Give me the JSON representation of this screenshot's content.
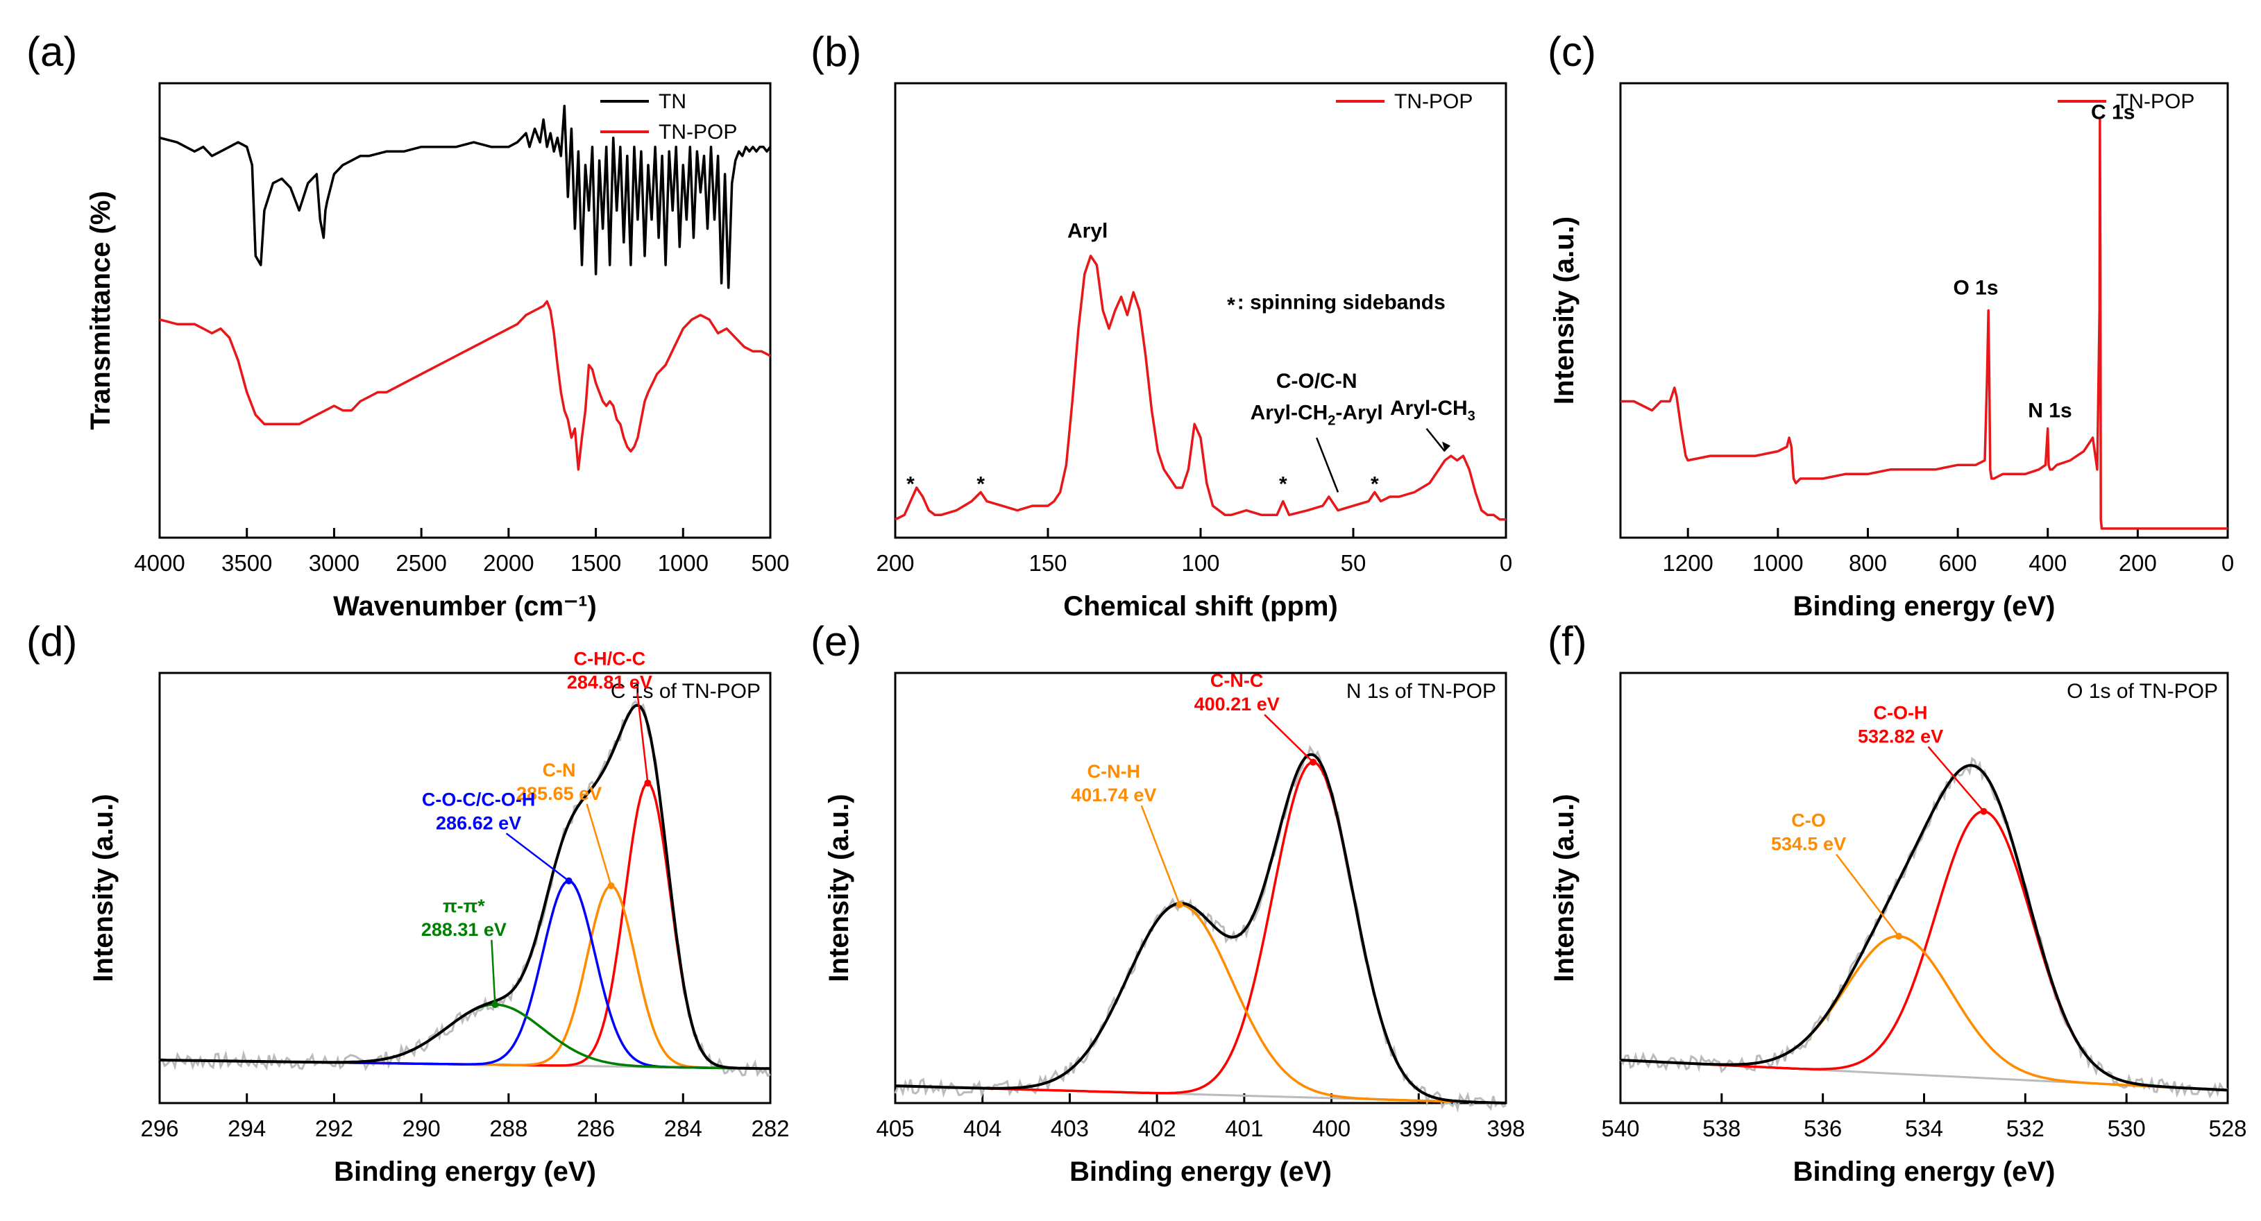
{
  "chart_data": [
    {
      "id": "a",
      "panel_label": "(a)",
      "type": "line",
      "title": "",
      "xlabel": "Wavenumber (cm⁻¹)",
      "ylabel": "Transmittance (%)",
      "xlim": [
        4000,
        500
      ],
      "ylim": [
        0,
        1
      ],
      "xticks": [
        "4000",
        "3500",
        "3000",
        "2500",
        "2000",
        "1500",
        "1000",
        "500"
      ],
      "xtick_values": [
        4000,
        3500,
        3000,
        2500,
        2000,
        1500,
        1000,
        500
      ],
      "legend": "top-right",
      "grid": false,
      "series": [
        {
          "name": "TN",
          "color": "#000000",
          "x": [
            4000,
            3900,
            3800,
            3750,
            3700,
            3650,
            3600,
            3550,
            3500,
            3470,
            3450,
            3420,
            3400,
            3350,
            3300,
            3250,
            3200,
            3150,
            3100,
            3080,
            3060,
            3050,
            3040,
            3000,
            2950,
            2900,
            2850,
            2800,
            2700,
            2600,
            2500,
            2400,
            2300,
            2200,
            2100,
            2000,
            1950,
            1900,
            1880,
            1850,
            1820,
            1800,
            1780,
            1760,
            1740,
            1720,
            1700,
            1680,
            1660,
            1640,
            1620,
            1600,
            1580,
            1560,
            1540,
            1520,
            1500,
            1480,
            1460,
            1440,
            1420,
            1400,
            1380,
            1360,
            1340,
            1320,
            1300,
            1280,
            1260,
            1240,
            1220,
            1200,
            1180,
            1160,
            1140,
            1120,
            1100,
            1080,
            1060,
            1040,
            1020,
            1000,
            980,
            960,
            940,
            920,
            900,
            880,
            860,
            840,
            820,
            800,
            780,
            760,
            740,
            720,
            700,
            680,
            660,
            640,
            620,
            600,
            580,
            560,
            540,
            520,
            500
          ],
          "y": [
            0.88,
            0.87,
            0.85,
            0.86,
            0.84,
            0.85,
            0.86,
            0.87,
            0.86,
            0.82,
            0.62,
            0.6,
            0.72,
            0.78,
            0.79,
            0.77,
            0.72,
            0.78,
            0.8,
            0.7,
            0.66,
            0.72,
            0.74,
            0.8,
            0.82,
            0.83,
            0.84,
            0.84,
            0.85,
            0.85,
            0.86,
            0.86,
            0.86,
            0.87,
            0.86,
            0.86,
            0.87,
            0.89,
            0.86,
            0.9,
            0.87,
            0.92,
            0.86,
            0.89,
            0.85,
            0.88,
            0.84,
            0.95,
            0.75,
            0.9,
            0.68,
            0.85,
            0.6,
            0.82,
            0.72,
            0.86,
            0.58,
            0.83,
            0.68,
            0.86,
            0.6,
            0.88,
            0.72,
            0.86,
            0.65,
            0.84,
            0.6,
            0.86,
            0.7,
            0.85,
            0.62,
            0.82,
            0.7,
            0.86,
            0.66,
            0.84,
            0.6,
            0.85,
            0.72,
            0.86,
            0.64,
            0.82,
            0.7,
            0.86,
            0.66,
            0.85,
            0.76,
            0.84,
            0.68,
            0.86,
            0.7,
            0.84,
            0.56,
            0.8,
            0.55,
            0.78,
            0.83,
            0.85,
            0.84,
            0.86,
            0.85,
            0.86,
            0.85,
            0.86,
            0.86,
            0.85,
            0.86
          ]
        },
        {
          "name": "TN-POP",
          "color": "#e8171a",
          "x": [
            4000,
            3900,
            3800,
            3750,
            3700,
            3650,
            3600,
            3550,
            3500,
            3450,
            3400,
            3350,
            3300,
            3250,
            3200,
            3150,
            3100,
            3050,
            3000,
            2950,
            2900,
            2850,
            2800,
            2750,
            2700,
            2600,
            2500,
            2400,
            2300,
            2200,
            2100,
            2000,
            1950,
            1900,
            1850,
            1800,
            1780,
            1760,
            1740,
            1720,
            1700,
            1680,
            1660,
            1640,
            1620,
            1600,
            1580,
            1560,
            1540,
            1520,
            1500,
            1480,
            1460,
            1440,
            1420,
            1400,
            1380,
            1360,
            1340,
            1320,
            1300,
            1280,
            1260,
            1240,
            1220,
            1200,
            1150,
            1100,
            1050,
            1000,
            950,
            900,
            850,
            800,
            750,
            700,
            650,
            600,
            550,
            500
          ],
          "y": [
            0.48,
            0.47,
            0.47,
            0.46,
            0.45,
            0.46,
            0.44,
            0.39,
            0.32,
            0.27,
            0.25,
            0.25,
            0.25,
            0.25,
            0.25,
            0.26,
            0.27,
            0.28,
            0.29,
            0.28,
            0.28,
            0.3,
            0.31,
            0.32,
            0.32,
            0.34,
            0.36,
            0.38,
            0.4,
            0.42,
            0.44,
            0.46,
            0.47,
            0.49,
            0.5,
            0.51,
            0.52,
            0.5,
            0.45,
            0.38,
            0.32,
            0.28,
            0.26,
            0.22,
            0.24,
            0.15,
            0.22,
            0.28,
            0.38,
            0.37,
            0.34,
            0.32,
            0.3,
            0.29,
            0.3,
            0.29,
            0.26,
            0.25,
            0.22,
            0.2,
            0.19,
            0.2,
            0.22,
            0.26,
            0.3,
            0.32,
            0.36,
            0.38,
            0.42,
            0.46,
            0.48,
            0.49,
            0.48,
            0.45,
            0.46,
            0.44,
            0.42,
            0.41,
            0.41,
            0.4
          ]
        }
      ]
    },
    {
      "id": "b",
      "panel_label": "(b)",
      "type": "line",
      "xlabel": "Chemical shift (ppm)",
      "ylabel": "",
      "xlim": [
        200,
        0
      ],
      "ylim": [
        0,
        1
      ],
      "xticks": [
        "200",
        "150",
        "100",
        "50",
        "0"
      ],
      "xtick_values": [
        200,
        150,
        100,
        50,
        0
      ],
      "legend": "top-right",
      "grid": false,
      "series": [
        {
          "name": "TN-POP",
          "color": "#e8171a",
          "x": [
            200,
            197,
            195,
            193,
            191,
            189,
            187,
            185,
            180,
            175,
            172,
            170,
            165,
            160,
            155,
            150,
            148,
            146,
            144,
            142,
            140,
            138,
            136,
            134,
            132,
            130,
            128,
            126,
            124,
            122,
            120,
            118,
            116,
            114,
            112,
            110,
            108,
            106,
            104,
            102,
            100,
            98,
            96,
            94,
            92,
            90,
            85,
            80,
            75,
            73,
            71,
            65,
            60,
            58,
            55,
            50,
            45,
            43,
            41,
            38,
            35,
            30,
            25,
            22,
            20,
            18,
            16,
            14,
            12,
            10,
            8,
            6,
            4,
            2,
            0
          ],
          "y": [
            0.04,
            0.05,
            0.08,
            0.11,
            0.09,
            0.06,
            0.05,
            0.05,
            0.06,
            0.08,
            0.1,
            0.08,
            0.07,
            0.06,
            0.07,
            0.07,
            0.08,
            0.1,
            0.16,
            0.3,
            0.46,
            0.58,
            0.62,
            0.6,
            0.5,
            0.46,
            0.5,
            0.53,
            0.49,
            0.54,
            0.5,
            0.4,
            0.28,
            0.19,
            0.15,
            0.13,
            0.11,
            0.11,
            0.15,
            0.25,
            0.22,
            0.12,
            0.07,
            0.06,
            0.05,
            0.05,
            0.06,
            0.05,
            0.05,
            0.08,
            0.05,
            0.06,
            0.07,
            0.09,
            0.06,
            0.07,
            0.08,
            0.1,
            0.08,
            0.09,
            0.09,
            0.1,
            0.12,
            0.15,
            0.17,
            0.18,
            0.17,
            0.18,
            0.15,
            0.1,
            0.06,
            0.05,
            0.05,
            0.04,
            0.04
          ]
        }
      ],
      "annotations": {
        "aryl": "Aryl",
        "sidebands": ": spinning sidebands",
        "asterisk": "*",
        "co_cn": "C-O/C-N",
        "aryl_ch2_a": "Aryl-CH",
        "aryl_ch2_sub": "2",
        "aryl_ch2_b": "-Aryl",
        "aryl_ch3_a": "Aryl-CH",
        "aryl_ch3_sub": "3"
      }
    },
    {
      "id": "c",
      "panel_label": "(c)",
      "type": "line",
      "xlabel": "Binding energy (eV)",
      "ylabel": "Intensity (a.u.)",
      "xlim": [
        1350,
        0
      ],
      "ylim": [
        0,
        1
      ],
      "xticks": [
        "1200",
        "1000",
        "800",
        "600",
        "400",
        "200",
        "0"
      ],
      "xtick_values": [
        1200,
        1000,
        800,
        600,
        400,
        200,
        0
      ],
      "legend": "top-right",
      "grid": false,
      "series": [
        {
          "name": "TN-POP",
          "color": "#e8171a",
          "x": [
            1350,
            1320,
            1300,
            1280,
            1260,
            1240,
            1230,
            1225,
            1215,
            1205,
            1200,
            1150,
            1100,
            1050,
            1000,
            980,
            975,
            970,
            965,
            960,
            950,
            900,
            850,
            800,
            750,
            700,
            650,
            600,
            560,
            540,
            535,
            532,
            530,
            528,
            525,
            520,
            500,
            450,
            420,
            405,
            400,
            398,
            395,
            390,
            380,
            350,
            320,
            300,
            290,
            285,
            284,
            283,
            282,
            280,
            270,
            250,
            200,
            150,
            100,
            50,
            0
          ],
          "y": [
            0.3,
            0.3,
            0.29,
            0.28,
            0.3,
            0.3,
            0.33,
            0.31,
            0.24,
            0.18,
            0.17,
            0.18,
            0.18,
            0.18,
            0.19,
            0.2,
            0.22,
            0.2,
            0.13,
            0.12,
            0.13,
            0.13,
            0.14,
            0.14,
            0.15,
            0.15,
            0.15,
            0.16,
            0.16,
            0.17,
            0.35,
            0.5,
            0.35,
            0.15,
            0.13,
            0.13,
            0.14,
            0.14,
            0.15,
            0.16,
            0.24,
            0.16,
            0.15,
            0.15,
            0.16,
            0.17,
            0.19,
            0.22,
            0.15,
            0.5,
            0.92,
            0.6,
            0.04,
            0.02,
            0.02,
            0.02,
            0.02,
            0.02,
            0.02,
            0.02,
            0.02
          ]
        }
      ],
      "annotations": {
        "c1s": "C 1s",
        "o1s": "O 1s",
        "n1s": "N 1s"
      }
    },
    {
      "id": "d",
      "panel_label": "(d)",
      "type": "line",
      "title": "C 1s of TN-POP",
      "xlabel": "Binding energy (eV)",
      "ylabel": "Intensity (a.u.)",
      "xlim": [
        296,
        282
      ],
      "ylim": [
        0,
        1
      ],
      "xticks": [
        "296",
        "294",
        "292",
        "290",
        "288",
        "286",
        "284",
        "282"
      ],
      "xtick_values": [
        296,
        294,
        292,
        290,
        288,
        286,
        284,
        282
      ],
      "grid": false,
      "peaks": [
        {
          "name": "C-H/C-C",
          "energy": "284.81 eV",
          "center": 284.81,
          "height": 0.66,
          "width": 0.52,
          "color": "#ff0000"
        },
        {
          "name": "C-N",
          "energy": "285.65 eV",
          "center": 285.65,
          "height": 0.42,
          "width": 0.55,
          "color": "#ff8c00"
        },
        {
          "name": "C-O-C/C-O-H",
          "energy": "286.62 eV",
          "center": 286.62,
          "height": 0.43,
          "width": 0.6,
          "color": "#0000ff"
        },
        {
          "name": "π-π*",
          "energy": "288.31 eV",
          "center": 288.31,
          "height": 0.14,
          "width": 1.1,
          "color": "#008000"
        }
      ],
      "background": {
        "start": 0.1,
        "end": 0.08
      },
      "envelope_color": "#000000",
      "raw_color": "#bbbbbb"
    },
    {
      "id": "e",
      "panel_label": "(e)",
      "type": "line",
      "title": "N 1s of TN-POP",
      "xlabel": "Binding energy (eV)",
      "ylabel": "Intensity (a.u.)",
      "xlim": [
        405,
        398
      ],
      "ylim": [
        0,
        1
      ],
      "xticks": [
        "405",
        "404",
        "403",
        "402",
        "401",
        "400",
        "399",
        "398"
      ],
      "xtick_values": [
        405,
        404,
        403,
        402,
        401,
        400,
        399,
        398
      ],
      "grid": false,
      "peaks": [
        {
          "name": "C-N-C",
          "energy": "400.21 eV",
          "center": 400.21,
          "height": 0.78,
          "width": 0.46,
          "color": "#ff0000"
        },
        {
          "name": "C-N-H",
          "energy": "401.74 eV",
          "center": 401.74,
          "height": 0.44,
          "width": 0.6,
          "color": "#ff8c00"
        }
      ],
      "background": {
        "start": 0.04,
        "end": 0.0
      },
      "envelope_color": "#000000",
      "raw_color": "#bbbbbb"
    },
    {
      "id": "f",
      "panel_label": "(f)",
      "type": "line",
      "title": "O 1s of TN-POP",
      "xlabel": "Binding energy (eV)",
      "ylabel": "Intensity (a.u.)",
      "xlim": [
        540,
        528
      ],
      "ylim": [
        0,
        1
      ],
      "xticks": [
        "540",
        "538",
        "536",
        "534",
        "532",
        "530",
        "528"
      ],
      "xtick_values": [
        540,
        538,
        536,
        534,
        532,
        530,
        528
      ],
      "grid": false,
      "peaks": [
        {
          "name": "C-O-H",
          "energy": "532.82 eV",
          "center": 532.82,
          "height": 0.62,
          "width": 0.95,
          "color": "#ff0000"
        },
        {
          "name": "C-O",
          "energy": "534.5 eV",
          "center": 534.5,
          "height": 0.32,
          "width": 1.05,
          "color": "#ff8c00"
        }
      ],
      "background": {
        "start": 0.1,
        "end": 0.03
      },
      "envelope_color": "#000000",
      "raw_color": "#bbbbbb"
    }
  ]
}
